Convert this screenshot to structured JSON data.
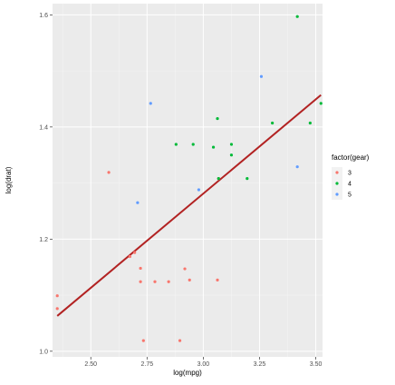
{
  "chart_data": {
    "type": "scatter",
    "title": "",
    "xlabel": "log(mpg)",
    "ylabel": "log(drat)",
    "xlim": [
      2.33,
      3.53
    ],
    "ylim": [
      0.99,
      1.62
    ],
    "x_ticks": [
      2.5,
      2.75,
      3.0,
      3.25,
      3.5
    ],
    "x_tick_labels": [
      "2.50",
      "2.75",
      "3.00",
      "3.25",
      "3.50"
    ],
    "y_ticks": [
      1.0,
      1.2,
      1.4,
      1.6
    ],
    "y_tick_labels": [
      "1.0",
      "1.2",
      "1.4",
      "1.6"
    ],
    "grid": true,
    "background": "#ebebeb",
    "legend": {
      "title": "factor(gear)",
      "position": "right"
    },
    "series": [
      {
        "name": "3",
        "color": "#f8766d",
        "points": [
          [
            2.351,
            1.099
          ],
          [
            2.351,
            1.076
          ],
          [
            2.58,
            1.319
          ],
          [
            2.674,
            1.169
          ],
          [
            2.695,
            1.176
          ],
          [
            2.721,
            1.148
          ],
          [
            2.721,
            1.124
          ],
          [
            2.734,
            1.019
          ],
          [
            2.785,
            1.124
          ],
          [
            2.846,
            1.124
          ],
          [
            2.896,
            1.019
          ],
          [
            2.918,
            1.147
          ],
          [
            2.939,
            1.127
          ],
          [
            3.063,
            1.127
          ],
          [
            3.068,
            1.308
          ]
        ]
      },
      {
        "name": "4",
        "color": "#00ba38",
        "points": [
          [
            2.879,
            1.369
          ],
          [
            2.955,
            1.369
          ],
          [
            3.045,
            1.364
          ],
          [
            3.063,
            1.415
          ],
          [
            3.068,
            1.308
          ],
          [
            3.125,
            1.369
          ],
          [
            3.125,
            1.35
          ],
          [
            3.195,
            1.308
          ],
          [
            3.307,
            1.407
          ],
          [
            3.418,
            1.597
          ],
          [
            3.475,
            1.407
          ],
          [
            3.523,
            1.442
          ]
        ]
      },
      {
        "name": "5",
        "color": "#619cff",
        "points": [
          [
            2.708,
            1.265
          ],
          [
            2.766,
            1.442
          ],
          [
            2.98,
            1.288
          ],
          [
            3.258,
            1.49
          ],
          [
            3.418,
            1.329
          ]
        ]
      }
    ],
    "trend_line": {
      "color": "#b22222",
      "x": [
        2.351,
        3.523
      ],
      "y": [
        1.063,
        1.457
      ]
    }
  }
}
